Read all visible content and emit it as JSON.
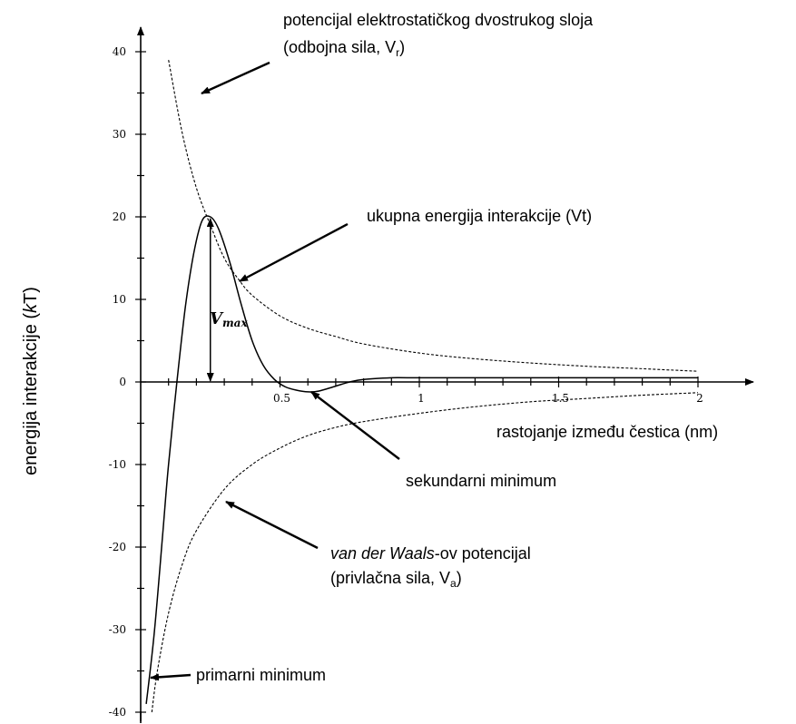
{
  "chart_data": {
    "type": "line",
    "title": "",
    "xlabel": "rastojanje između čestica (nm)",
    "ylabel_parts": [
      "energija interakcije (",
      "k",
      "T)"
    ],
    "xlim": [
      0,
      2
    ],
    "ylim": [
      -40,
      40
    ],
    "x_ticks": [
      0.5,
      1,
      1.5,
      2
    ],
    "x_tick_labels": [
      "0.5",
      "1",
      "1.5",
      "2"
    ],
    "y_ticks": [
      40,
      30,
      20,
      10,
      0,
      -10,
      -20,
      -30,
      -40
    ],
    "y_tick_labels": [
      "40",
      "30",
      "20",
      "10",
      "0",
      "-10",
      "-20",
      "-30",
      "-40"
    ],
    "series": [
      {
        "id": "repulsive",
        "style": "dashed",
        "x": [
          0.1,
          0.15,
          0.2,
          0.25,
          0.3,
          0.35,
          0.4,
          0.5,
          0.6,
          0.7,
          0.8,
          1.0,
          1.2,
          1.4,
          1.6,
          1.8,
          2.0
        ],
        "y": [
          39,
          30,
          23.5,
          19,
          15,
          12.5,
          10.5,
          8,
          6.5,
          5.5,
          4.6,
          3.5,
          2.8,
          2.3,
          1.9,
          1.6,
          1.3
        ]
      },
      {
        "id": "attractive",
        "style": "dashed",
        "x": [
          0.04,
          0.06,
          0.1,
          0.15,
          0.2,
          0.3,
          0.4,
          0.5,
          0.6,
          0.7,
          0.8,
          1.0,
          1.2,
          1.4,
          1.6,
          1.8,
          2.0
        ],
        "y": [
          -40,
          -35,
          -28,
          -22,
          -18,
          -13,
          -10,
          -8,
          -6.5,
          -5.5,
          -4.8,
          -3.8,
          -3,
          -2.4,
          -2,
          -1.6,
          -1.3
        ]
      },
      {
        "id": "total",
        "style": "solid",
        "x": [
          0.02,
          0.05,
          0.08,
          0.1,
          0.13,
          0.16,
          0.19,
          0.22,
          0.25,
          0.28,
          0.32,
          0.36,
          0.4,
          0.44,
          0.48,
          0.52,
          0.56,
          0.6,
          0.64,
          0.7,
          0.75,
          0.8,
          0.9,
          1.0,
          1.5,
          2.0
        ],
        "y": [
          -39,
          -30,
          -18,
          -10,
          0,
          9,
          15.5,
          19.5,
          20,
          18.5,
          14.5,
          9.5,
          5,
          2,
          0.3,
          -0.6,
          -1,
          -1.2,
          -1.1,
          -0.5,
          0,
          0.3,
          0.5,
          0.5,
          0.5,
          0.5
        ]
      }
    ],
    "annotations": {
      "repulsive_label": [
        "potencijal elektrostatičkog dvostrukog sloja",
        "(odbojna sila, V",
        "r",
        ")"
      ],
      "total_label": "ukupna energija interakcije (Vt)",
      "vmax_label": [
        "V",
        "max"
      ],
      "vmax_value": 20,
      "secondary_label": "sekundarni minimum",
      "attractive_label": [
        "van der Waals",
        "-ov potencijal"
      ],
      "attractive_label_2": [
        "(privlačna sila, V",
        "a",
        ")"
      ],
      "primary_label": "primarni minimum"
    }
  }
}
